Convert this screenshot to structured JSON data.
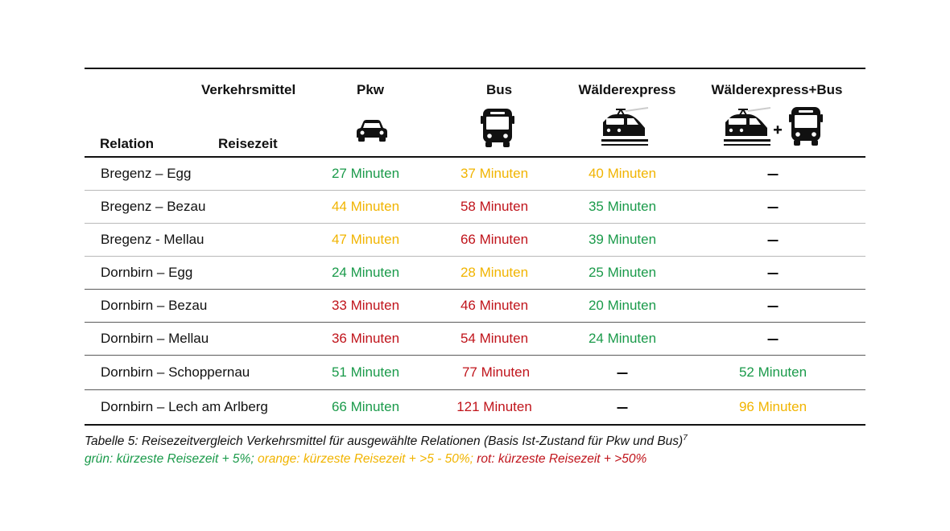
{
  "header": {
    "verkehrsmittel": "Verkehrsmittel",
    "relation": "Relation",
    "reisezeit": "Reisezeit",
    "columns": [
      "Pkw",
      "Bus",
      "Wälderexpress",
      "Wälderexpress+Bus"
    ],
    "icons": [
      "car-icon",
      "bus-icon",
      "train-icon",
      "train-plus-bus-icon"
    ]
  },
  "rows": [
    {
      "relation": "Bregenz – Egg",
      "pkw": "27 Minuten",
      "bus": "37 Minuten",
      "wx": "40 Minuten",
      "wxbus": "–"
    },
    {
      "relation": "Bregenz – Bezau",
      "pkw": "44 Minuten",
      "bus": "58 Minuten",
      "wx": "35 Minuten",
      "wxbus": "–"
    },
    {
      "relation": "Bregenz - Mellau",
      "pkw": "47 Minuten",
      "bus": "66 Minuten",
      "wx": "39 Minuten",
      "wxbus": "–"
    },
    {
      "relation": "Dornbirn – Egg",
      "pkw": "24 Minuten",
      "bus": "28 Minuten",
      "wx": "25 Minuten",
      "wxbus": "–"
    },
    {
      "relation": "Dornbirn – Bezau",
      "pkw": "33 Minuten",
      "bus": "46 Minuten",
      "wx": "20 Minuten",
      "wxbus": "–"
    },
    {
      "relation": "Dornbirn – Mellau",
      "pkw": "36 Minuten",
      "bus": "54 Minuten",
      "wx": "24 Minuten",
      "wxbus": "–"
    },
    {
      "relation": "Dornbirn – Schoppernau",
      "pkw": "51 Minuten",
      "bus": "77 Minuten",
      "wx": "–",
      "wxbus": "52 Minuten"
    },
    {
      "relation": "Dornbirn – Lech am Arlberg",
      "pkw": "66 Minuten",
      "bus": "121 Minuten",
      "wx": "–",
      "wxbus": "96 Minuten"
    }
  ],
  "caption": {
    "line1": "Tabelle 5: Reisezeitvergleich Verkehrsmittel für ausgewählte Relationen (Basis Ist-Zustand für Pkw und Bus)",
    "footnote": "7",
    "legend_green": "grün: kürzeste Reisezeit + 5%;",
    "legend_orange": " orange: kürzeste Reisezeit + >5 - 50%;",
    "legend_red": " rot: kürzeste Reisezeit + >50%"
  },
  "colors": {
    "green": "#1a9a4a",
    "orange": "#f1b400",
    "red": "#c0141b"
  }
}
